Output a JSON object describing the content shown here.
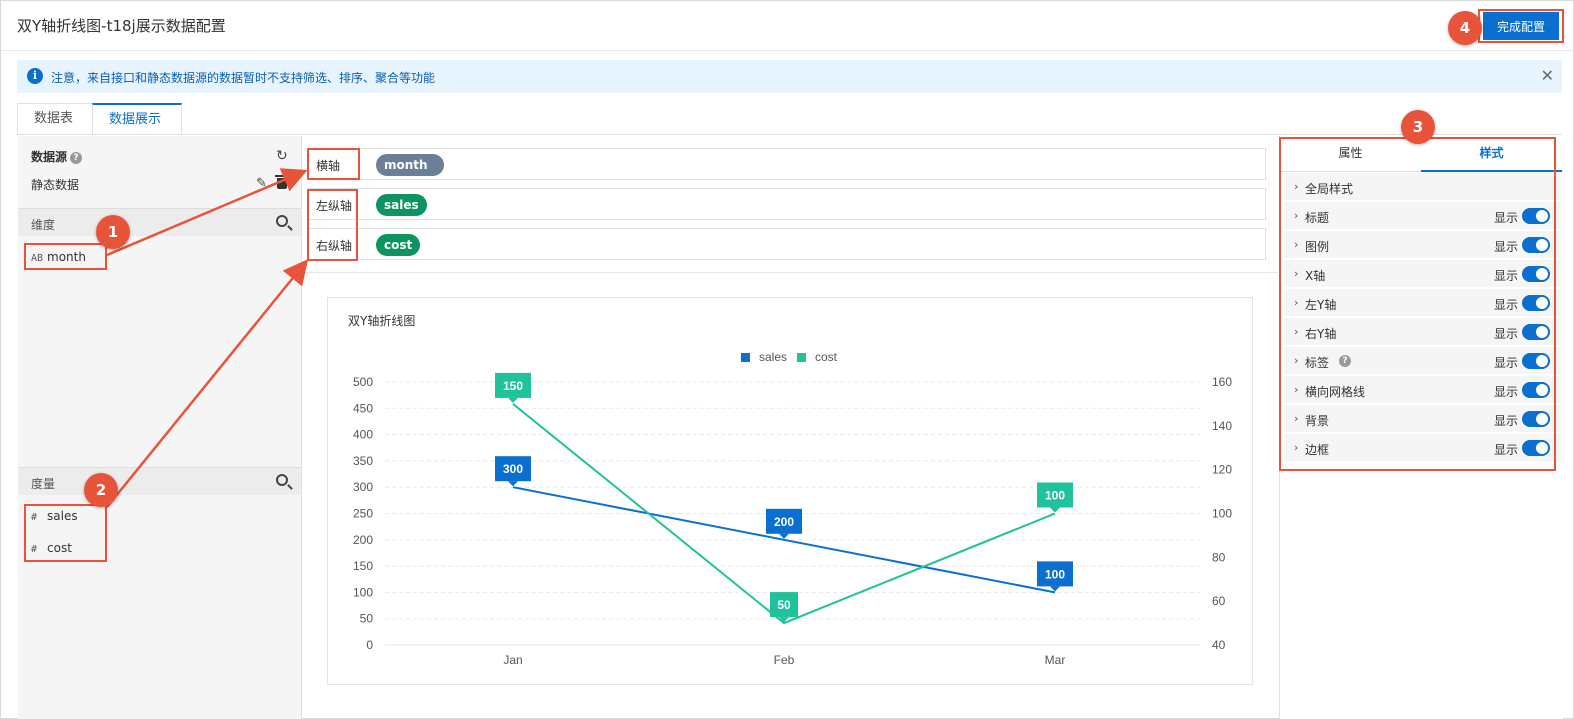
{
  "header": {
    "title": "双Y轴折线图-t18j展示数据配置",
    "done_label": "完成配置"
  },
  "notice": {
    "text": "注意，来自接口和静态数据源的数据暂时不支持筛选、排序、聚合等功能",
    "icon": "i"
  },
  "tabs": [
    {
      "label": "数据表"
    },
    {
      "label": "数据展示"
    }
  ],
  "datasource": {
    "title": "数据源",
    "name": "静态数据",
    "dimension_label": "维度",
    "measure_label": "度量",
    "dimensions": [
      {
        "type": "AB",
        "name": "month"
      }
    ],
    "measures": [
      {
        "type": "#",
        "name": "sales"
      },
      {
        "type": "#",
        "name": "cost"
      }
    ]
  },
  "axes": [
    {
      "label": "横轴",
      "field": "month"
    },
    {
      "label": "左纵轴",
      "field": "sales"
    },
    {
      "label": "右纵轴",
      "field": "cost"
    }
  ],
  "colors": {
    "sales": "#0a6fce",
    "cost": "#1fc29a",
    "accent": "#e8543a"
  },
  "chart_data": {
    "type": "line",
    "title": "双Y轴折线图",
    "categories": [
      "Jan",
      "Feb",
      "Mar"
    ],
    "series": [
      {
        "name": "sales",
        "values": [
          300,
          200,
          100
        ],
        "axis": "left"
      },
      {
        "name": "cost",
        "values": [
          150,
          50,
          100
        ],
        "axis": "right"
      }
    ],
    "left_ylim": [
      0,
      500
    ],
    "left_ticks": [
      0,
      50,
      100,
      150,
      200,
      250,
      300,
      350,
      400,
      450,
      500
    ],
    "right_ylim": [
      40,
      160
    ],
    "right_ticks": [
      40,
      60,
      80,
      100,
      120,
      140,
      160
    ],
    "legend": "top-center",
    "grid": true,
    "data_labels": true
  },
  "style_panel": {
    "tabs": [
      {
        "label": "属性"
      },
      {
        "label": "样式"
      }
    ],
    "show_text": "显示",
    "items": [
      {
        "label": "全局样式",
        "toggle": false
      },
      {
        "label": "标题",
        "toggle": true
      },
      {
        "label": "图例",
        "toggle": true
      },
      {
        "label": "X轴",
        "toggle": true
      },
      {
        "label": "左Y轴",
        "toggle": true
      },
      {
        "label": "右Y轴",
        "toggle": true
      },
      {
        "label": "标签",
        "toggle": true,
        "help": true
      },
      {
        "label": "横向网格线",
        "toggle": true
      },
      {
        "label": "背景",
        "toggle": true
      },
      {
        "label": "边框",
        "toggle": true
      }
    ]
  },
  "annotations": {
    "badges": [
      "1",
      "2",
      "3",
      "4"
    ]
  }
}
